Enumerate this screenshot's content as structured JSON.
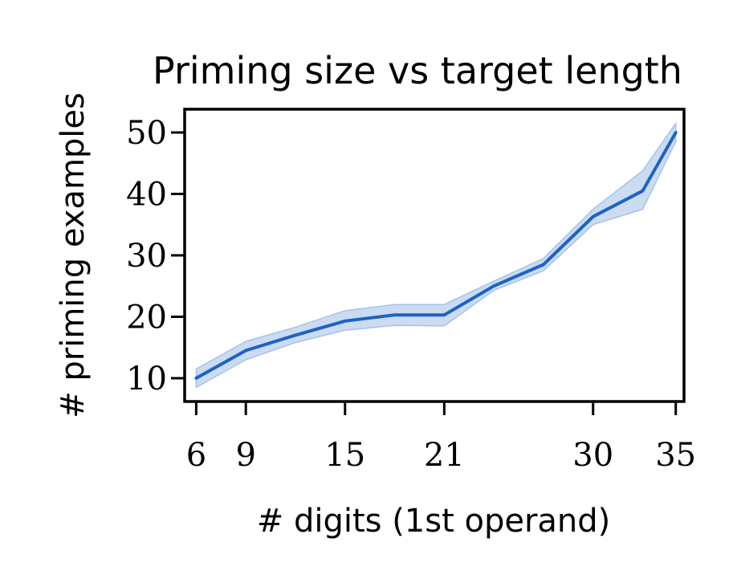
{
  "chart_data": {
    "type": "line",
    "title": "Priming size vs target length",
    "xlabel": "# digits (1st operand)",
    "ylabel": "# priming examples",
    "xlim": [
      5.3,
      35.5
    ],
    "ylim": [
      6.2,
      53.8
    ],
    "xticks": [
      6,
      9,
      15,
      21,
      30,
      35
    ],
    "yticks": [
      10,
      20,
      30,
      40,
      50
    ],
    "grid": false,
    "series": [
      {
        "x": [
          6,
          9,
          12,
          15,
          18,
          21,
          24,
          27,
          30,
          33,
          35
        ],
        "y": [
          10.0,
          14.5,
          17.0,
          19.3,
          20.3,
          20.3,
          25.0,
          28.5,
          36.3,
          40.5,
          50.0
        ],
        "lower": [
          8.5,
          13.0,
          15.8,
          17.8,
          18.6,
          18.5,
          24.3,
          27.5,
          35.0,
          37.5,
          48.5
        ],
        "upper": [
          11.5,
          16.0,
          18.3,
          21.0,
          22.0,
          22.0,
          25.8,
          29.5,
          37.5,
          43.8,
          51.5
        ],
        "color": "#1f62c1",
        "band_color": "#a6c3ea"
      }
    ]
  }
}
